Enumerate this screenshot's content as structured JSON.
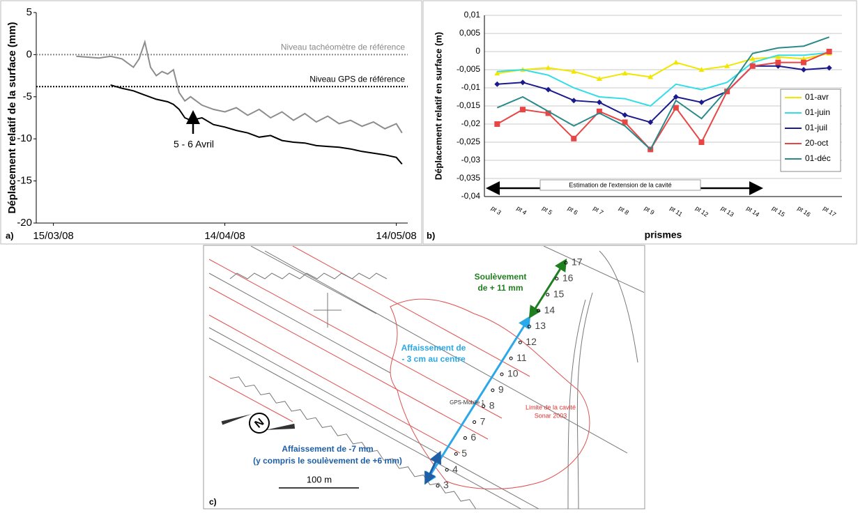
{
  "chart_data": [
    {
      "type": "line",
      "panel_label": "a)",
      "y_label": "Déplacement relatif de la surface (mm)",
      "xlim": [
        "2008-03-12",
        "2008-05-16"
      ],
      "xticks": [
        {
          "value": "2008-03-15",
          "label": "15/03/08"
        },
        {
          "value": "2008-04-14",
          "label": "14/04/08"
        },
        {
          "value": "2008-05-14",
          "label": "14/05/08"
        }
      ],
      "ylim": [
        -20,
        5
      ],
      "yticks": [
        5,
        0,
        -5,
        -10,
        -15,
        -20
      ],
      "reference_lines": [
        {
          "value": 0,
          "label": "Niveau tachéomètre de référence",
          "color": "#888888"
        },
        {
          "value": -3.8,
          "label": "Niveau GPS de référence",
          "color": "#000000"
        }
      ],
      "annotation": "5 - 6 Avril",
      "series": [
        {
          "color": "#8c8c8c",
          "x": [
            "2008-03-19",
            "2008-03-21",
            "2008-03-23",
            "2008-03-25",
            "2008-03-27",
            "2008-03-29",
            "2008-03-30",
            "2008-03-31",
            "2008-04-01",
            "2008-04-02",
            "2008-04-03",
            "2008-04-04",
            "2008-04-05",
            "2008-04-06",
            "2008-04-07",
            "2008-04-08",
            "2008-04-10",
            "2008-04-12",
            "2008-04-14",
            "2008-04-16",
            "2008-04-18",
            "2008-04-20",
            "2008-04-22",
            "2008-04-24",
            "2008-04-26",
            "2008-04-28",
            "2008-04-30",
            "2008-05-02",
            "2008-05-04",
            "2008-05-06",
            "2008-05-08",
            "2008-05-10",
            "2008-05-12",
            "2008-05-14",
            "2008-05-15"
          ],
          "values": [
            -0.2,
            -0.3,
            -0.4,
            -0.2,
            -0.5,
            -1.5,
            -0.5,
            1.5,
            -1.5,
            -2.5,
            -2,
            -2.3,
            -1.8,
            -4.5,
            -5.5,
            -5,
            -6,
            -6.5,
            -6.8,
            -6.3,
            -7.2,
            -6.5,
            -7.5,
            -6.8,
            -7.8,
            -7,
            -8,
            -7.3,
            -8.2,
            -7.8,
            -8.5,
            -8,
            -8.8,
            -8.2,
            -9.3
          ]
        },
        {
          "color": "#000000",
          "x": [
            "2008-03-25",
            "2008-03-27",
            "2008-03-29",
            "2008-03-31",
            "2008-04-02",
            "2008-04-04",
            "2008-04-05",
            "2008-04-06",
            "2008-04-07",
            "2008-04-08",
            "2008-04-10",
            "2008-04-12",
            "2008-04-14",
            "2008-04-16",
            "2008-04-18",
            "2008-04-20",
            "2008-04-22",
            "2008-04-24",
            "2008-04-26",
            "2008-04-28",
            "2008-04-30",
            "2008-05-02",
            "2008-05-04",
            "2008-05-06",
            "2008-05-08",
            "2008-05-10",
            "2008-05-12",
            "2008-05-14",
            "2008-05-15"
          ],
          "values": [
            -3.6,
            -4,
            -4.3,
            -4.8,
            -5.3,
            -5.6,
            -5.9,
            -6.5,
            -7.5,
            -7.8,
            -7.5,
            -8.3,
            -8.6,
            -9,
            -9.3,
            -9.8,
            -9.6,
            -10.2,
            -10.4,
            -10.5,
            -10.8,
            -10.9,
            -11,
            -11.2,
            -11.5,
            -11.7,
            -11.9,
            -12.2,
            -13
          ]
        }
      ]
    },
    {
      "type": "line",
      "panel_label": "b)",
      "y_label": "Déplacement relatif en surface (m)",
      "x_label": "prismes",
      "categories": [
        "pt 3",
        "pt 4",
        "pt 5",
        "pt 6",
        "pt 7",
        "pt 8",
        "pt 9",
        "pt 11",
        "pt 12",
        "pt 13",
        "pt 14",
        "pt 15",
        "pt 16",
        "pt 17"
      ],
      "ylim": [
        -0.04,
        0.01
      ],
      "yticks": [
        {
          "value": 0.01,
          "label": "0,01"
        },
        {
          "value": 0.005,
          "label": "0,005"
        },
        0,
        {
          "value": -0.005,
          "label": "-0,005"
        },
        {
          "value": -0.01,
          "label": "-0,01"
        },
        {
          "value": -0.015,
          "label": "-0,015"
        },
        {
          "value": -0.02,
          "label": "-0,02"
        },
        {
          "value": -0.025,
          "label": "-0,025"
        },
        {
          "value": -0.03,
          "label": "-0,03"
        },
        {
          "value": -0.035,
          "label": "-0,035"
        },
        {
          "value": -0.04,
          "label": "-0,04"
        }
      ],
      "grid": true,
      "legend": "right",
      "annotation": "Estimation de l'extension de la cavité",
      "series": [
        {
          "name": "01-avr",
          "color": "#f2e600",
          "marker": "triangle",
          "values": [
            -0.006,
            -0.005,
            -0.0045,
            -0.0055,
            -0.0075,
            -0.006,
            -0.007,
            -0.003,
            -0.005,
            -0.004,
            -0.002,
            -0.0015,
            -0.002,
            -0.0005
          ]
        },
        {
          "name": "01-juin",
          "color": "#33dde8",
          "marker": "none",
          "values": [
            -0.0055,
            -0.005,
            -0.0065,
            -0.01,
            -0.0125,
            -0.013,
            -0.015,
            -0.009,
            -0.0105,
            -0.0085,
            -0.003,
            -0.001,
            -0.001,
            -0.0003
          ]
        },
        {
          "name": "01-juil",
          "color": "#1a1a8c",
          "marker": "diamond",
          "values": [
            -0.009,
            -0.0085,
            -0.0105,
            -0.0135,
            -0.014,
            -0.0175,
            -0.0195,
            -0.0125,
            -0.014,
            -0.011,
            -0.004,
            -0.004,
            -0.005,
            -0.0045
          ]
        },
        {
          "name": "20-oct",
          "color": "#e84545",
          "marker": "square",
          "values": [
            -0.02,
            -0.016,
            -0.017,
            -0.024,
            -0.0165,
            -0.0195,
            -0.027,
            -0.0155,
            -0.025,
            -0.011,
            -0.004,
            -0.003,
            -0.003,
            0
          ]
        },
        {
          "name": "01-déc",
          "color": "#2a8a8a",
          "marker": "none",
          "values": [
            -0.0155,
            -0.0125,
            -0.0165,
            -0.0205,
            -0.017,
            -0.0205,
            -0.027,
            -0.0135,
            -0.0185,
            -0.0105,
            -0.0005,
            0.001,
            0.0015,
            0.004
          ]
        }
      ]
    }
  ],
  "map": {
    "panel_label": "c)",
    "uplift": [
      "Soulèvement",
      "de + 11 mm"
    ],
    "center": [
      "Affaissement de",
      "- 3 cm au centre"
    ],
    "south": [
      "Affaissement de -7 mm",
      "(y compris le soulèvement de +6 mm)"
    ],
    "cavity": [
      "Limite de la cavité",
      "Sonar 2003"
    ],
    "gps": "GPS-Mobile 1",
    "scale": "100 m",
    "north": "N",
    "prisms": [
      "17",
      "16",
      "15",
      "14",
      "13",
      "12",
      "11",
      "10",
      "9",
      "8",
      "7",
      "6",
      "5",
      "4",
      "3"
    ]
  }
}
